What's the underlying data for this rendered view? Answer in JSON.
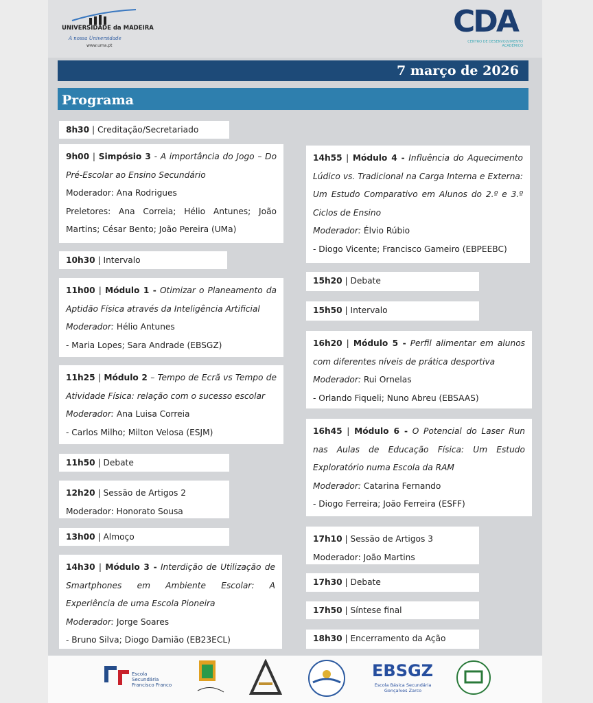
{
  "header": {
    "university": "UNIVERSIDADE da MADEIRA",
    "motto": "A nossa Universidade",
    "website": "www.uma.pt",
    "cda_logo": "CDA",
    "cda_subtitle": "CENTRO DE DESENVOLVIMENTO ACADÉMICO"
  },
  "date": "7 março de 2026",
  "section_title": "Programa",
  "left_column": [
    {
      "time": "8h30",
      "sep": "|",
      "text": "Creditação/Secretariado"
    },
    {
      "time": "9h00",
      "sep": "|",
      "session": "Simpósio 3",
      "title": "- A importância do Jogo – Do Pré-Escolar ao Ensino Secundário",
      "moderator_line": "Moderador: Ana Rodrigues",
      "speakers": "Preletores: Ana Correia; Hélio Antunes; João Martins; César Bento; João Pereira (UMa)"
    },
    {
      "time": "10h30",
      "sep": "|",
      "text": "Intervalo"
    },
    {
      "time": "11h00",
      "sep": "|",
      "session": "Módulo 1 -",
      "title": "Otimizar o Planeamento da Aptidão Física através da Inteligência Artificial",
      "moderator_label": "Moderador:",
      "moderator": "Hélio Antunes",
      "speakers": "- Maria Lopes; Sara Andrade (EBSGZ)"
    },
    {
      "time": "11h25",
      "sep": "|",
      "session": "Módulo 2",
      "title": "– Tempo de Ecrã vs Tempo de Atividade Física: relação com o sucesso escolar",
      "moderator_label": "Moderador:",
      "moderator": "Ana Luisa Correia",
      "speakers": "- Carlos Milho; Milton Velosa (ESJM)"
    },
    {
      "time": "11h50",
      "sep": "|",
      "text": "Debate"
    },
    {
      "time": "12h20",
      "sep": "|",
      "text": "Sessão de Artigos 2",
      "moderator_line": "Moderador: Honorato Sousa"
    },
    {
      "time": "13h00",
      "sep": "|",
      "text": "Almoço"
    },
    {
      "time": "14h30",
      "sep": "|",
      "session": "Módulo 3 -",
      "title": "Interdição de Utilização de Smartphones em Ambiente Escolar: A Experiência de uma Escola Pioneira",
      "moderator_label": "Moderador:",
      "moderator": "Jorge Soares",
      "speakers": "- Bruno Silva; Diogo Damião (EB23ECL)"
    }
  ],
  "right_column": [
    {
      "time": "14h55",
      "sep": "|",
      "session": "Módulo 4 -",
      "title": "Influência do Aquecimento Lúdico vs. Tradicional na Carga Interna e Externa: Um Estudo Comparativo em Alunos do 2.º e 3.º Ciclos de Ensino",
      "moderator_label": "Moderador:",
      "moderator": "Élvio Rúbio",
      "speakers": "- Diogo Vicente; Francisco Gameiro (EBPEEBC)"
    },
    {
      "time": "15h20",
      "sep": "|",
      "text": "Debate"
    },
    {
      "time": "15h50",
      "sep": "|",
      "text": "Intervalo"
    },
    {
      "time": "16h20",
      "sep": "|",
      "session": "Módulo 5 -",
      "title": "Perfil alimentar em alunos com diferentes níveis de prática desportiva",
      "moderator_label": "Moderador:",
      "moderator": "Rui Ornelas",
      "speakers": "- Orlando Fiqueli; Nuno Abreu (EBSAAS)"
    },
    {
      "time": "16h45",
      "sep": "|",
      "session": "Módulo 6 -",
      "title": "O Potencial do Laser Run nas Aulas de Educação Física: Um Estudo Exploratório numa Escola da RAM",
      "moderator_label": "Moderador:",
      "moderator": "Catarina Fernando",
      "speakers": "- Diogo Ferreira; João Ferreira (ESFF)"
    },
    {
      "time": "17h10",
      "sep": "|",
      "text": "Sessão de Artigos 3",
      "moderator_line": "Moderador: João Martins"
    },
    {
      "time": "17h30",
      "sep": "|",
      "text": "Debate"
    },
    {
      "time": "17h50",
      "sep": "|",
      "text": "Síntese final"
    },
    {
      "time": "18h30",
      "sep": "|",
      "text": "Encerramento da Ação"
    }
  ],
  "footer": {
    "school_1": "Escola Secundária Francisco Franco",
    "school_2_logo": "EBSGZ",
    "school_2": "Escola Básica Secundária Gonçalves Zarco"
  }
}
